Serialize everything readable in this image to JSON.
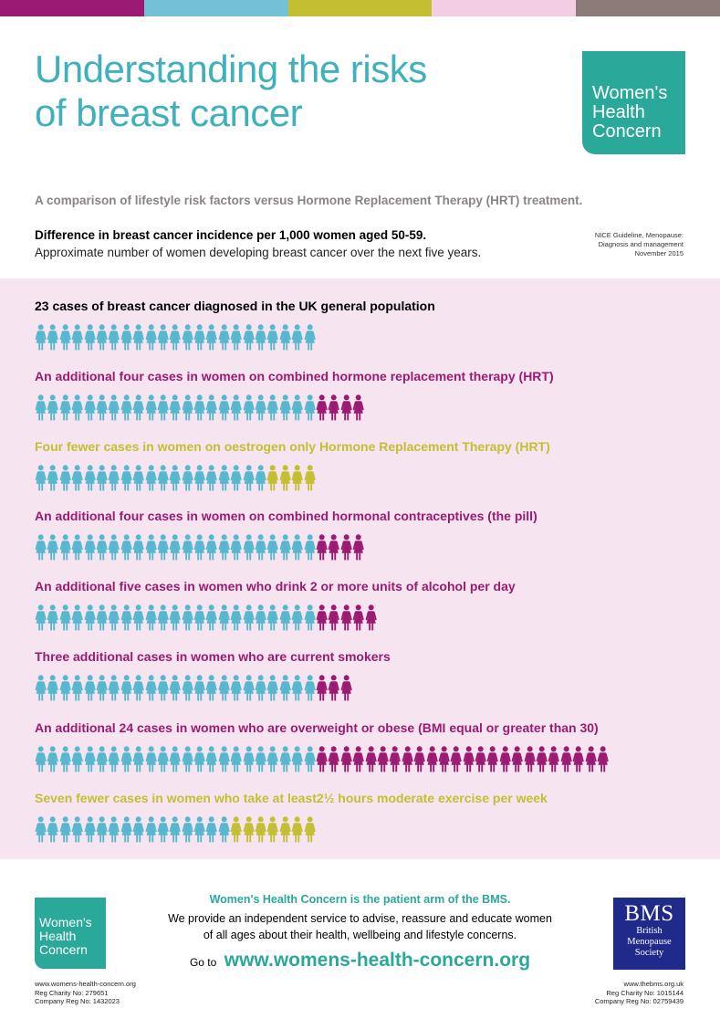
{
  "colors": {
    "teal_title": "#3fb1bd",
    "logo_green": "#2aa89a",
    "base_figure": "#56b7cf",
    "increase_figure": "#9b1b72",
    "decrease_figure": "#c3be32",
    "panel_bg": "#f6e5f0",
    "top_bar": [
      "#9b1b72",
      "#73c1d6",
      "#c3be32",
      "#f3cde2",
      "#8c7b78"
    ]
  },
  "header": {
    "title_line1": "Understanding the risks",
    "title_line2": "of breast cancer",
    "logo_line1": "Women's",
    "logo_line2": "Health",
    "logo_line3": "Concern",
    "subtitle": "A comparison of lifestyle risk factors versus Hormone Replacement Therapy (HRT) treatment.",
    "intro_bold": "Difference in breast cancer incidence per 1,000 women aged 50-59.",
    "intro_text": "Approximate number of women developing breast cancer over the next five years.",
    "source_line1": "NICE Guideline, Menopause:",
    "source_line2": "Diagnosis and management",
    "source_line3": "November 2015"
  },
  "rows": [
    {
      "label": "23 cases of breast cancer diagnosed in the  UK general population",
      "label_color": "#000000",
      "base": 23,
      "extra": 0,
      "extra_type": "none"
    },
    {
      "label": "An additional four cases in women on combined hormone replacement therapy (HRT)",
      "label_color": "#9b1b72",
      "base": 23,
      "extra": 4,
      "extra_type": "increase"
    },
    {
      "label": "Four fewer  cases in women on oestrogen only Hormone Replacement Therapy (HRT)",
      "label_color": "#c3be32",
      "base": 19,
      "extra": 4,
      "extra_type": "decrease"
    },
    {
      "label": "An additional four cases in women on combined hormonal contraceptives (the pill)",
      "label_color": "#9b1b72",
      "base": 23,
      "extra": 4,
      "extra_type": "increase"
    },
    {
      "label": "An additional five cases in women who drink 2 or more units of alcohol per day",
      "label_color": "#9b1b72",
      "base": 23,
      "extra": 5,
      "extra_type": "increase"
    },
    {
      "label": "Three additional cases in women who are current smokers",
      "label_color": "#9b1b72",
      "base": 23,
      "extra": 3,
      "extra_type": "increase"
    },
    {
      "label": "An additional 24 cases in women who are overweight or obese (BMI equal or greater than 30)",
      "label_color": "#9b1b72",
      "base": 23,
      "extra": 24,
      "extra_type": "increase"
    },
    {
      "label": "Seven fewer cases in women who take at least2½ hours moderate exercise per week",
      "label_color": "#c3be32",
      "base": 16,
      "extra": 7,
      "extra_type": "decrease"
    }
  ],
  "footer": {
    "logo_line1": "Women's",
    "logo_line2": "Health",
    "logo_line3": "Concern",
    "headline": "Women's Health Concern is the patient arm of the BMS.",
    "body_line1": "We provide an independent service to advise, reassure and educate women",
    "body_line2": "of all ages about their health, wellbeing and lifestyle concerns.",
    "goto_label": "Go to",
    "goto_url": "www.womens-health-concern.org",
    "left_line1": "www.womens-health-concern.org",
    "left_line2": "Reg Charity No: 279651",
    "left_line3": "Company Reg No: 1432023",
    "bms_big": "BMS",
    "bms_line1": "British",
    "bms_line2": "Menopause",
    "bms_line3": "Society",
    "right_line1": "www.thebms.org.uk",
    "right_line2": "Reg Charity No: 1015144",
    "right_line3": "Company Reg No: 02759439"
  }
}
